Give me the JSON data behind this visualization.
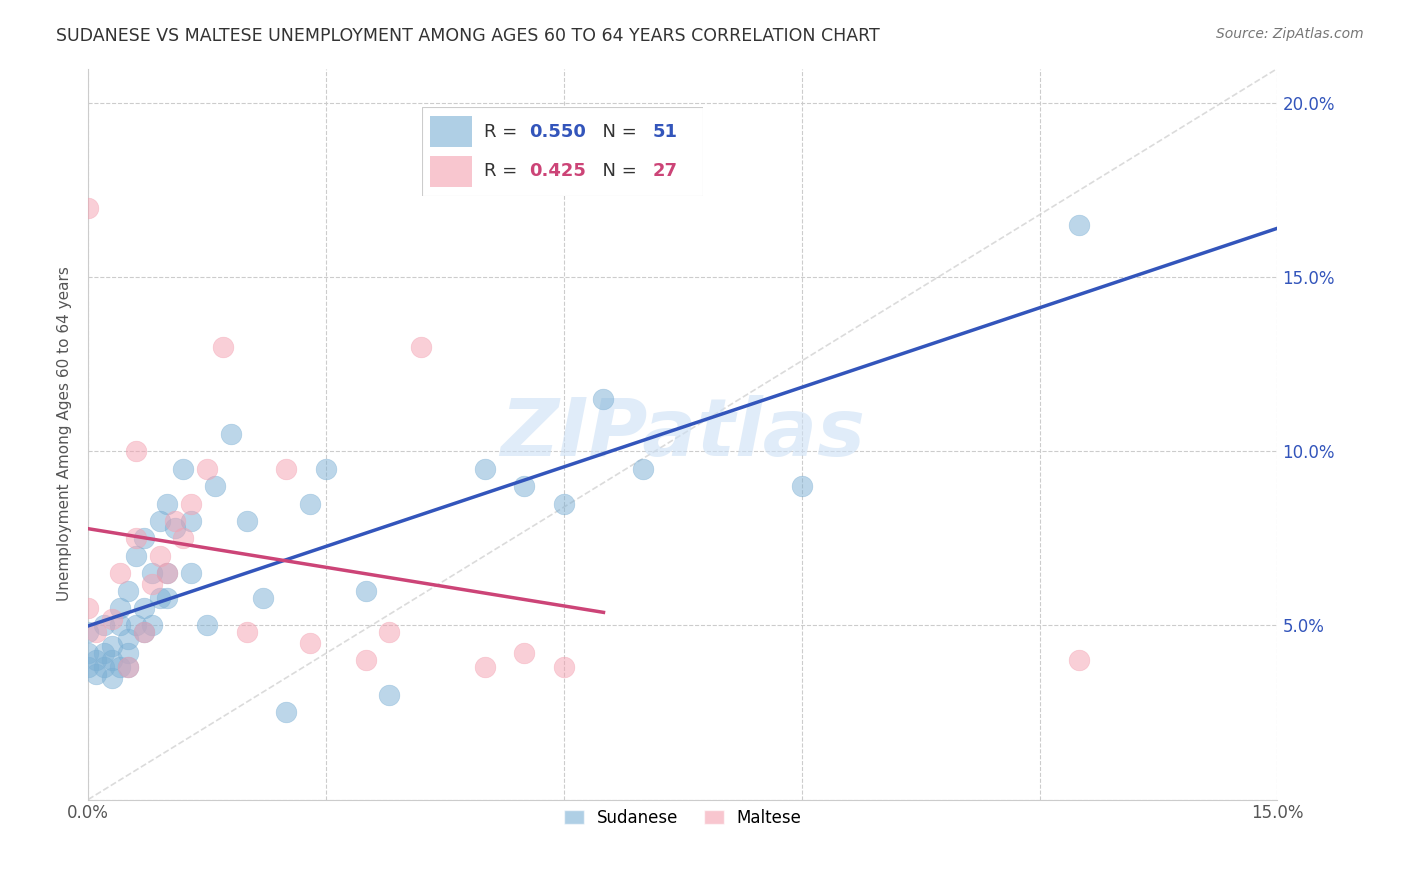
{
  "title": "SUDANESE VS MALTESE UNEMPLOYMENT AMONG AGES 60 TO 64 YEARS CORRELATION CHART",
  "source": "Source: ZipAtlas.com",
  "ylabel": "Unemployment Among Ages 60 to 64 years",
  "xlim": [
    0.0,
    0.15
  ],
  "ylim": [
    0.0,
    0.21
  ],
  "xticks": [
    0.0,
    0.03,
    0.06,
    0.09,
    0.12,
    0.15
  ],
  "yticks": [
    0.0,
    0.05,
    0.1,
    0.15,
    0.2
  ],
  "xtick_labels": [
    "0.0%",
    "",
    "",
    "",
    "",
    "15.0%"
  ],
  "ytick_labels_right": [
    "",
    "5.0%",
    "10.0%",
    "15.0%",
    "20.0%"
  ],
  "background_color": "#ffffff",
  "grid_color": "#cccccc",
  "watermark_text": "ZIPatlas",
  "sudanese_color": "#7bafd4",
  "maltese_color": "#f4a0b0",
  "sudanese_line_color": "#3355bb",
  "maltese_line_color": "#cc4477",
  "sudanese_R": 0.55,
  "sudanese_N": 51,
  "maltese_R": 0.425,
  "maltese_N": 27,
  "sudanese_x": [
    0.0,
    0.0,
    0.0,
    0.001,
    0.001,
    0.002,
    0.002,
    0.002,
    0.003,
    0.003,
    0.003,
    0.004,
    0.004,
    0.004,
    0.005,
    0.005,
    0.005,
    0.005,
    0.006,
    0.006,
    0.007,
    0.007,
    0.007,
    0.008,
    0.008,
    0.009,
    0.009,
    0.01,
    0.01,
    0.01,
    0.011,
    0.012,
    0.013,
    0.013,
    0.015,
    0.016,
    0.018,
    0.02,
    0.022,
    0.025,
    0.028,
    0.03,
    0.035,
    0.038,
    0.05,
    0.055,
    0.06,
    0.065,
    0.07,
    0.09,
    0.125
  ],
  "sudanese_y": [
    0.038,
    0.042,
    0.048,
    0.036,
    0.04,
    0.038,
    0.042,
    0.05,
    0.035,
    0.04,
    0.044,
    0.038,
    0.05,
    0.055,
    0.038,
    0.042,
    0.046,
    0.06,
    0.05,
    0.07,
    0.048,
    0.055,
    0.075,
    0.05,
    0.065,
    0.058,
    0.08,
    0.058,
    0.065,
    0.085,
    0.078,
    0.095,
    0.065,
    0.08,
    0.05,
    0.09,
    0.105,
    0.08,
    0.058,
    0.025,
    0.085,
    0.095,
    0.06,
    0.03,
    0.095,
    0.09,
    0.085,
    0.115,
    0.095,
    0.09,
    0.165
  ],
  "maltese_x": [
    0.0,
    0.0,
    0.001,
    0.003,
    0.004,
    0.005,
    0.006,
    0.006,
    0.007,
    0.008,
    0.009,
    0.01,
    0.011,
    0.012,
    0.013,
    0.015,
    0.017,
    0.02,
    0.025,
    0.028,
    0.035,
    0.038,
    0.042,
    0.05,
    0.055,
    0.06,
    0.125
  ],
  "maltese_y": [
    0.055,
    0.17,
    0.048,
    0.052,
    0.065,
    0.038,
    0.075,
    0.1,
    0.048,
    0.062,
    0.07,
    0.065,
    0.08,
    0.075,
    0.085,
    0.095,
    0.13,
    0.048,
    0.095,
    0.045,
    0.04,
    0.048,
    0.13,
    0.038,
    0.042,
    0.038,
    0.04
  ],
  "diagonal_color": "#cccccc"
}
